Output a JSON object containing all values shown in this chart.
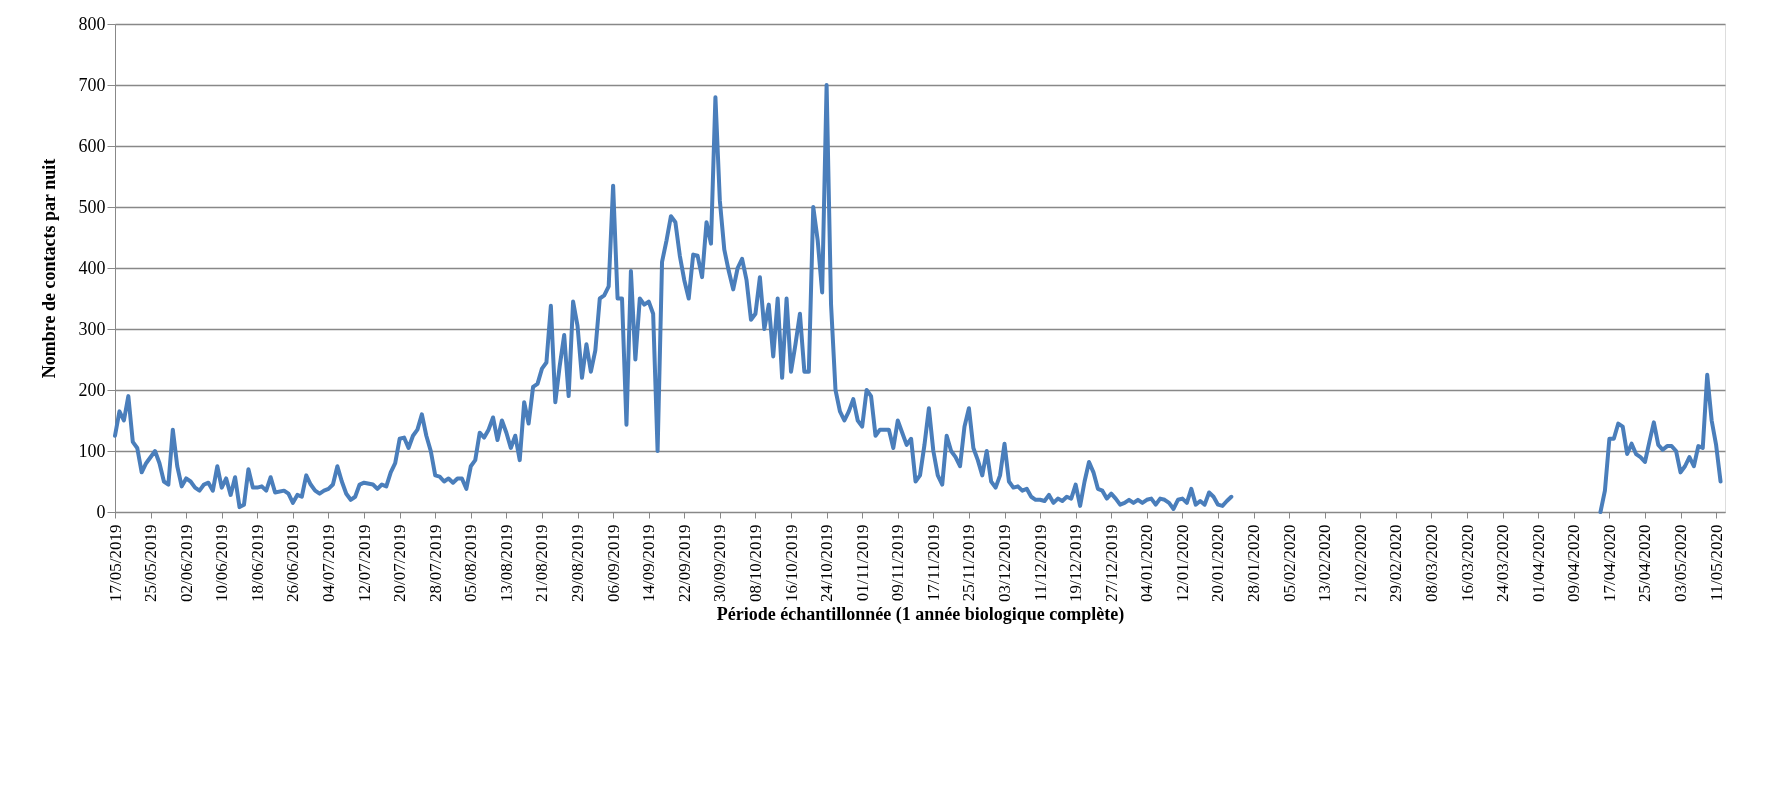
{
  "chart_data": {
    "type": "line",
    "xlabel": "Période échantillonnée (1 année biologique complète)",
    "ylabel": "Nombre de contacts par nuit",
    "ylim": [
      0,
      800
    ],
    "yticks": [
      0,
      100,
      200,
      300,
      400,
      500,
      600,
      700,
      800
    ],
    "xlim": [
      "2019-05-17",
      "2020-05-13"
    ],
    "xticks": [
      {
        "value": "2019-05-17",
        "label": "17/05/2019"
      },
      {
        "value": "2019-05-25",
        "label": "25/05/2019"
      },
      {
        "value": "2019-06-02",
        "label": "02/06/2019"
      },
      {
        "value": "2019-06-10",
        "label": "10/06/2019"
      },
      {
        "value": "2019-06-18",
        "label": "18/06/2019"
      },
      {
        "value": "2019-06-26",
        "label": "26/06/2019"
      },
      {
        "value": "2019-07-04",
        "label": "04/07/2019"
      },
      {
        "value": "2019-07-12",
        "label": "12/07/2019"
      },
      {
        "value": "2019-07-20",
        "label": "20/07/2019"
      },
      {
        "value": "2019-07-28",
        "label": "28/07/2019"
      },
      {
        "value": "2019-08-05",
        "label": "05/08/2019"
      },
      {
        "value": "2019-08-13",
        "label": "13/08/2019"
      },
      {
        "value": "2019-08-21",
        "label": "21/08/2019"
      },
      {
        "value": "2019-08-29",
        "label": "29/08/2019"
      },
      {
        "value": "2019-09-06",
        "label": "06/09/2019"
      },
      {
        "value": "2019-09-14",
        "label": "14/09/2019"
      },
      {
        "value": "2019-09-22",
        "label": "22/09/2019"
      },
      {
        "value": "2019-09-30",
        "label": "30/09/2019"
      },
      {
        "value": "2019-10-08",
        "label": "08/10/2019"
      },
      {
        "value": "2019-10-16",
        "label": "16/10/2019"
      },
      {
        "value": "2019-10-24",
        "label": "24/10/2019"
      },
      {
        "value": "2019-11-01",
        "label": "01/11/2019"
      },
      {
        "value": "2019-11-09",
        "label": "09/11/2019"
      },
      {
        "value": "2019-11-17",
        "label": "17/11/2019"
      },
      {
        "value": "2019-11-25",
        "label": "25/11/2019"
      },
      {
        "value": "2019-12-03",
        "label": "03/12/2019"
      },
      {
        "value": "2019-12-11",
        "label": "11/12/2019"
      },
      {
        "value": "2019-12-19",
        "label": "19/12/2019"
      },
      {
        "value": "2019-12-27",
        "label": "27/12/2019"
      },
      {
        "value": "2020-01-04",
        "label": "04/01/2020"
      },
      {
        "value": "2020-01-12",
        "label": "12/01/2020"
      },
      {
        "value": "2020-01-20",
        "label": "20/01/2020"
      },
      {
        "value": "2020-01-28",
        "label": "28/01/2020"
      },
      {
        "value": "2020-02-05",
        "label": "05/02/2020"
      },
      {
        "value": "2020-02-13",
        "label": "13/02/2020"
      },
      {
        "value": "2020-02-21",
        "label": "21/02/2020"
      },
      {
        "value": "2020-02-29",
        "label": "29/02/2020"
      },
      {
        "value": "2020-03-08",
        "label": "08/03/2020"
      },
      {
        "value": "2020-03-16",
        "label": "16/03/2020"
      },
      {
        "value": "2020-03-24",
        "label": "24/03/2020"
      },
      {
        "value": "2020-04-01",
        "label": "01/04/2020"
      },
      {
        "value": "2020-04-09",
        "label": "09/04/2020"
      },
      {
        "value": "2020-04-17",
        "label": "17/04/2020"
      },
      {
        "value": "2020-04-25",
        "label": "25/04/2020"
      },
      {
        "value": "2020-05-03",
        "label": "03/05/2020"
      },
      {
        "value": "2020-05-11",
        "label": "11/05/2020"
      }
    ],
    "grid": "y",
    "legend": false,
    "marker": "none",
    "line_style": "solid",
    "x": [
      "2019-05-17",
      "2019-05-18",
      "2019-05-19",
      "2019-05-20",
      "2019-05-21",
      "2019-05-22",
      "2019-05-23",
      "2019-05-24",
      "2019-05-26",
      "2019-05-27",
      "2019-05-28",
      "2019-05-29",
      "2019-05-30",
      "2019-05-31",
      "2019-06-01",
      "2019-06-02",
      "2019-06-03",
      "2019-06-04",
      "2019-06-05",
      "2019-06-06",
      "2019-06-07",
      "2019-06-08",
      "2019-06-09",
      "2019-06-10",
      "2019-06-11",
      "2019-06-12",
      "2019-06-13",
      "2019-06-14",
      "2019-06-15",
      "2019-06-16",
      "2019-06-17",
      "2019-06-18",
      "2019-06-19",
      "2019-06-20",
      "2019-06-21",
      "2019-06-22",
      "2019-06-24",
      "2019-06-25",
      "2019-06-26",
      "2019-06-27",
      "2019-06-28",
      "2019-06-29",
      "2019-06-30",
      "2019-07-01",
      "2019-07-02",
      "2019-07-03",
      "2019-07-04",
      "2019-07-05",
      "2019-07-06",
      "2019-07-07",
      "2019-07-08",
      "2019-07-09",
      "2019-07-10",
      "2019-07-11",
      "2019-07-12",
      "2019-07-14",
      "2019-07-15",
      "2019-07-16",
      "2019-07-17",
      "2019-07-18",
      "2019-07-19",
      "2019-07-20",
      "2019-07-21",
      "2019-07-22",
      "2019-07-23",
      "2019-07-24",
      "2019-07-25",
      "2019-07-26",
      "2019-07-27",
      "2019-07-28",
      "2019-07-29",
      "2019-07-30",
      "2019-07-31",
      "2019-08-01",
      "2019-08-02",
      "2019-08-03",
      "2019-08-04",
      "2019-08-05",
      "2019-08-06",
      "2019-08-07",
      "2019-08-08",
      "2019-08-09",
      "2019-08-10",
      "2019-08-11",
      "2019-08-12",
      "2019-08-13",
      "2019-08-14",
      "2019-08-15",
      "2019-08-16",
      "2019-08-17",
      "2019-08-18",
      "2019-08-19",
      "2019-08-20",
      "2019-08-21",
      "2019-08-22",
      "2019-08-23",
      "2019-08-24",
      "2019-08-25",
      "2019-08-26",
      "2019-08-27",
      "2019-08-28",
      "2019-08-29",
      "2019-08-30",
      "2019-08-31",
      "2019-09-01",
      "2019-09-02",
      "2019-09-03",
      "2019-09-04",
      "2019-09-05",
      "2019-09-06",
      "2019-09-07",
      "2019-09-08",
      "2019-09-09",
      "2019-09-10",
      "2019-09-11",
      "2019-09-12",
      "2019-09-13",
      "2019-09-14",
      "2019-09-15",
      "2019-09-16",
      "2019-09-17",
      "2019-09-18",
      "2019-09-19",
      "2019-09-20",
      "2019-09-21",
      "2019-09-22",
      "2019-09-23",
      "2019-09-24",
      "2019-09-25",
      "2019-09-26",
      "2019-09-27",
      "2019-09-28",
      "2019-09-29",
      "2019-09-30",
      "2019-10-01",
      "2019-10-02",
      "2019-10-03",
      "2019-10-04",
      "2019-10-05",
      "2019-10-06",
      "2019-10-07",
      "2019-10-08",
      "2019-10-09",
      "2019-10-10",
      "2019-10-11",
      "2019-10-12",
      "2019-10-13",
      "2019-10-14",
      "2019-10-15",
      "2019-10-16",
      "2019-10-17",
      "2019-10-18",
      "2019-10-19",
      "2019-10-20",
      "2019-10-21",
      "2019-10-22",
      "2019-10-23",
      "2019-10-24",
      "2019-10-25",
      "2019-10-26",
      "2019-10-27",
      "2019-10-28",
      "2019-10-29",
      "2019-10-30",
      "2019-10-31",
      "2019-11-01",
      "2019-11-02",
      "2019-11-03",
      "2019-11-04",
      "2019-11-05",
      "2019-11-06",
      "2019-11-07",
      "2019-11-08",
      "2019-11-09",
      "2019-11-10",
      "2019-11-11",
      "2019-11-12",
      "2019-11-13",
      "2019-11-14",
      "2019-11-15",
      "2019-11-16",
      "2019-11-17",
      "2019-11-18",
      "2019-11-19",
      "2019-11-20",
      "2019-11-21",
      "2019-11-22",
      "2019-11-23",
      "2019-11-24",
      "2019-11-25",
      "2019-11-26",
      "2019-11-27",
      "2019-11-28",
      "2019-11-29",
      "2019-11-30",
      "2019-12-01",
      "2019-12-02",
      "2019-12-03",
      "2019-12-04",
      "2019-12-05",
      "2019-12-06",
      "2019-12-07",
      "2019-12-08",
      "2019-12-09",
      "2019-12-10",
      "2019-12-11",
      "2019-12-12",
      "2019-12-13",
      "2019-12-14",
      "2019-12-15",
      "2019-12-16",
      "2019-12-17",
      "2019-12-18",
      "2019-12-19",
      "2019-12-20",
      "2019-12-21",
      "2019-12-22",
      "2019-12-23",
      "2019-12-24",
      "2019-12-25",
      "2019-12-26",
      "2019-12-27",
      "2019-12-28",
      "2019-12-29",
      "2019-12-30",
      "2019-12-31",
      "2020-01-01",
      "2020-01-02",
      "2020-01-03",
      "2020-01-04",
      "2020-01-05",
      "2020-01-06",
      "2020-01-07",
      "2020-01-08",
      "2020-01-09",
      "2020-01-10",
      "2020-01-11",
      "2020-01-12",
      "2020-01-13",
      "2020-01-14",
      "2020-01-15",
      "2020-01-16",
      "2020-01-17",
      "2020-01-18",
      "2020-01-19",
      "2020-01-20",
      "2020-01-21",
      "2020-01-22",
      "2020-01-23",
      "2020-03-01",
      "2020-04-15",
      "2020-04-16",
      "2020-04-17",
      "2020-04-18",
      "2020-04-19",
      "2020-04-20",
      "2020-04-21",
      "2020-04-22",
      "2020-04-23",
      "2020-04-24",
      "2020-04-25",
      "2020-04-26",
      "2020-04-27",
      "2020-04-28",
      "2020-04-29",
      "2020-04-30",
      "2020-05-01",
      "2020-05-02",
      "2020-05-03",
      "2020-05-04",
      "2020-05-05",
      "2020-05-06",
      "2020-05-07",
      "2020-05-08",
      "2020-05-09",
      "2020-05-10",
      "2020-05-11",
      "2020-05-12"
    ],
    "series": [
      {
        "color": "#4a7ebb",
        "values": [
          125,
          165,
          150,
          190,
          115,
          105,
          65,
          80,
          100,
          80,
          50,
          45,
          135,
          75,
          42,
          55,
          50,
          40,
          35,
          45,
          48,
          35,
          75,
          40,
          55,
          28,
          57,
          8,
          12,
          70,
          40,
          40,
          42,
          35,
          57,
          32,
          35,
          30,
          15,
          28,
          25,
          60,
          45,
          35,
          30,
          35,
          38,
          45,
          75,
          50,
          30,
          20,
          25,
          45,
          48,
          45,
          38,
          45,
          42,
          65,
          80,
          120,
          122,
          105,
          125,
          135,
          160,
          125,
          100,
          60,
          58,
          50,
          55,
          48,
          55,
          55,
          38,
          75,
          85,
          130,
          122,
          135,
          155,
          118,
          150,
          130,
          105,
          125,
          85,
          180,
          145,
          205,
          210,
          235,
          245,
          338,
          180,
          240,
          290,
          190,
          345,
          305,
          220,
          275,
          230,
          265,
          350,
          355,
          370,
          535,
          350,
          350,
          143,
          395,
          250,
          350,
          340,
          345,
          325,
          100,
          410,
          445,
          485,
          475,
          420,
          380,
          350,
          422,
          420,
          385,
          475,
          440,
          680,
          510,
          430,
          395,
          365,
          400,
          415,
          380,
          315,
          325,
          385,
          300,
          340,
          255,
          350,
          220,
          350,
          230,
          275,
          325,
          230,
          230,
          500,
          445,
          360,
          700,
          340,
          200,
          165,
          150,
          165,
          185,
          150,
          140,
          200,
          190,
          125,
          135,
          135,
          135,
          105,
          150,
          130,
          110,
          120,
          50,
          60,
          110,
          170,
          100,
          60,
          45,
          125,
          100,
          90,
          75,
          140,
          170,
          105,
          85,
          60,
          100,
          50,
          40,
          60,
          112,
          50,
          40,
          42,
          35,
          38,
          25,
          20,
          20,
          18,
          28,
          15,
          22,
          18,
          25,
          22,
          45,
          10,
          50,
          82,
          65,
          38,
          35,
          22,
          30,
          22,
          12,
          15,
          20,
          15,
          20,
          15,
          20,
          22,
          12,
          22,
          20,
          15,
          5,
          20,
          22,
          15,
          38,
          12,
          18,
          12,
          32,
          25,
          12,
          10,
          18,
          25,
          null,
          0,
          35,
          120,
          120,
          145,
          140,
          95,
          112,
          95,
          90,
          82,
          115,
          147,
          110,
          102,
          108,
          108,
          100,
          65,
          75,
          90,
          75,
          108,
          105,
          225,
          150,
          110,
          50
        ]
      }
    ]
  }
}
